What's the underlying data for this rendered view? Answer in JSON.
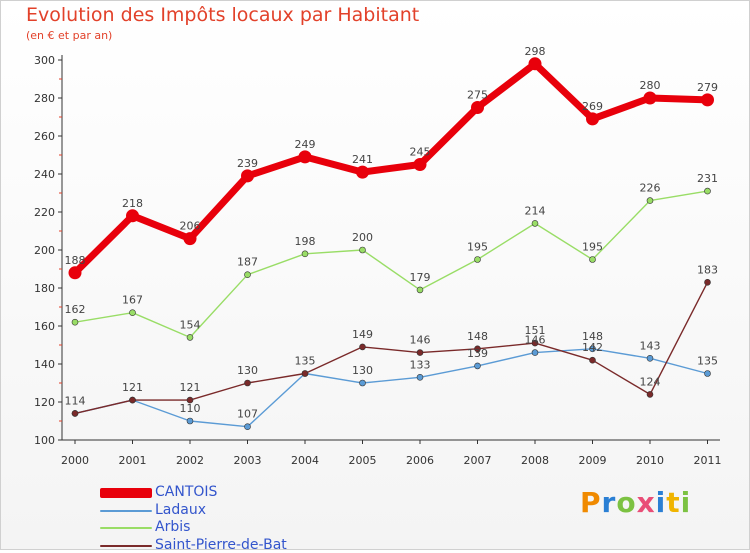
{
  "title": "Evolution des Impôts locaux par Habitant",
  "subtitle": "(en € et par an)",
  "brand": "Proxiti",
  "chart_data": {
    "type": "line",
    "title": "Evolution des Impôts locaux par Habitant",
    "ylabel": "(en € et par an)",
    "xlabel": "",
    "ylim": [
      100,
      300
    ],
    "yticks": [
      "100",
      "120",
      "140",
      "160",
      "180",
      "200",
      "220",
      "240",
      "260",
      "280",
      "300"
    ],
    "x": [
      "2000",
      "2001",
      "2002",
      "2003",
      "2004",
      "2005",
      "2006",
      "2007",
      "2008",
      "2009",
      "2010",
      "2011"
    ],
    "series": [
      {
        "name": "CANTOIS",
        "color": "#e8000b",
        "values": [
          188,
          218,
          206,
          239,
          249,
          241,
          245,
          275,
          298,
          269,
          280,
          279
        ]
      },
      {
        "name": "Ladaux",
        "color": "#5b9bd5",
        "values": [
          114,
          121,
          110,
          107,
          135,
          130,
          133,
          139,
          146,
          148,
          143,
          135
        ]
      },
      {
        "name": "Arbis",
        "color": "#99dd66",
        "values": [
          162,
          167,
          154,
          187,
          198,
          200,
          179,
          195,
          214,
          195,
          226,
          231
        ]
      },
      {
        "name": "Saint-Pierre-de-Bat",
        "color": "#7a2a2a",
        "values": [
          114,
          121,
          121,
          130,
          135,
          149,
          146,
          148,
          151,
          142,
          124,
          183
        ]
      }
    ],
    "data_labels": {
      "CANTOIS": [
        "188",
        "218",
        "206",
        "239",
        "249",
        "241",
        "245",
        "275",
        "298",
        "269",
        "280",
        "279"
      ],
      "Ladaux": [
        "",
        "",
        "110",
        "107",
        "",
        "130",
        "133",
        "139",
        "146",
        "148",
        "143",
        "135"
      ],
      "Arbis": [
        "162",
        "167",
        "154",
        "187",
        "198",
        "200",
        "179",
        "195",
        "214",
        "195",
        "226",
        "231"
      ],
      "Saint-Pierre-de-Bat": [
        "114",
        "121",
        "121",
        "130",
        "135",
        "149",
        "146",
        "148",
        "151",
        "142",
        "124",
        "183"
      ]
    },
    "legend_position": "bottom-left",
    "grid": false
  }
}
